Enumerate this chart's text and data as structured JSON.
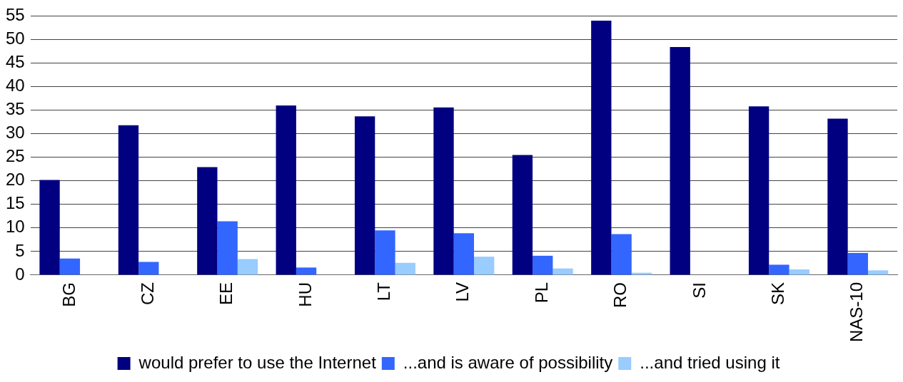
{
  "chart_data": {
    "type": "bar",
    "categories": [
      "BG",
      "CZ",
      "EE",
      "HU",
      "LT",
      "LV",
      "PL",
      "RO",
      "SI",
      "SK",
      "NAS-10"
    ],
    "series": [
      {
        "name": "would prefer to use the Internet",
        "color": "#000080",
        "values": [
          20.2,
          31.8,
          22.9,
          36.0,
          33.7,
          35.6,
          25.5,
          54.0,
          48.4,
          35.8,
          33.2
        ]
      },
      {
        "name": "...and is aware of possibility",
        "color": "#3366ff",
        "values": [
          3.5,
          2.8,
          11.4,
          1.6,
          9.5,
          8.9,
          4.1,
          8.7,
          null,
          2.2,
          4.7
        ]
      },
      {
        "name": "...and tried using it",
        "color": "#99ccff",
        "values": [
          null,
          null,
          3.4,
          null,
          2.6,
          3.9,
          1.4,
          0.5,
          null,
          1.2,
          1.0
        ]
      }
    ],
    "ylim": [
      0,
      55
    ],
    "yticks": [
      0,
      5,
      10,
      15,
      20,
      25,
      30,
      35,
      40,
      45,
      50,
      55
    ],
    "grid": "y",
    "legend": "bottom"
  }
}
